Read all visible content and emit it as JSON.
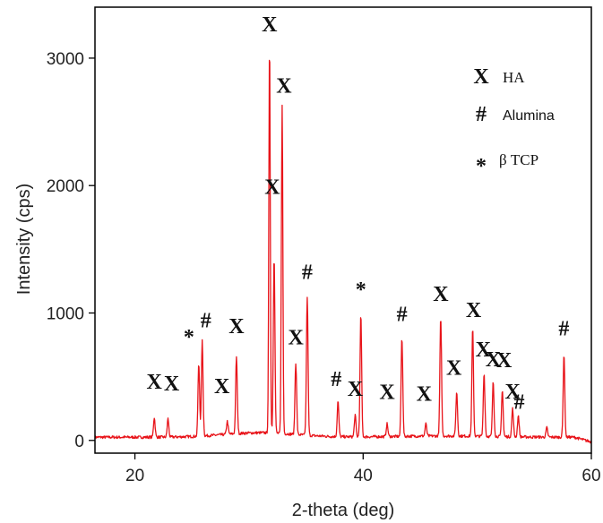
{
  "chart_data": {
    "type": "line",
    "title": "",
    "xlabel": "2-theta (deg)",
    "ylabel": "Intensity (cps)",
    "xlim": [
      16.5,
      60
    ],
    "ylim": [
      -100,
      3400
    ],
    "x_ticks": [
      20,
      40,
      60
    ],
    "x_tick_labels": [
      "20",
      "40",
      "60"
    ],
    "y_ticks": [
      0,
      1000,
      2000,
      3000
    ],
    "y_tick_labels": [
      "0",
      "1000",
      "2000",
      "3000"
    ],
    "grid": false,
    "line_color": "#e8141a",
    "legend": {
      "placement": "top-right",
      "entries": [
        {
          "symbol": "X",
          "label": "HA"
        },
        {
          "symbol": "#",
          "label": "Alumina"
        },
        {
          "symbol": "*",
          "label": "β TCP"
        }
      ]
    },
    "peaks": [
      {
        "x": 21.7,
        "y": 180,
        "marker": "X"
      },
      {
        "x": 22.9,
        "y": 170,
        "marker": "X"
      },
      {
        "x": 25.6,
        "y": 600,
        "marker": "*"
      },
      {
        "x": 25.9,
        "y": 780,
        "marker": "#"
      },
      {
        "x": 28.1,
        "y": 150,
        "marker": "X"
      },
      {
        "x": 28.9,
        "y": 660,
        "marker": "X"
      },
      {
        "x": 31.8,
        "y": 3120,
        "marker": "X"
      },
      {
        "x": 32.2,
        "y": 1450,
        "marker": "X"
      },
      {
        "x": 32.9,
        "y": 2640,
        "marker": "X"
      },
      {
        "x": 34.1,
        "y": 610,
        "marker": "X"
      },
      {
        "x": 35.1,
        "y": 1130,
        "marker": "#"
      },
      {
        "x": 37.8,
        "y": 310,
        "marker": "#"
      },
      {
        "x": 39.3,
        "y": 200,
        "marker": "X"
      },
      {
        "x": 39.8,
        "y": 990,
        "marker": "*"
      },
      {
        "x": 42.1,
        "y": 130,
        "marker": "X"
      },
      {
        "x": 43.4,
        "y": 810,
        "marker": "#"
      },
      {
        "x": 45.5,
        "y": 130,
        "marker": "X"
      },
      {
        "x": 46.8,
        "y": 960,
        "marker": "X"
      },
      {
        "x": 48.2,
        "y": 380,
        "marker": "X"
      },
      {
        "x": 49.6,
        "y": 880,
        "marker": "X"
      },
      {
        "x": 50.6,
        "y": 530,
        "marker": "X"
      },
      {
        "x": 51.4,
        "y": 460,
        "marker": "X"
      },
      {
        "x": 52.2,
        "y": 400,
        "marker": "X"
      },
      {
        "x": 53.1,
        "y": 250,
        "marker": "X"
      },
      {
        "x": 53.6,
        "y": 190,
        "marker": "#"
      },
      {
        "x": 56.1,
        "y": 100,
        "marker": ""
      },
      {
        "x": 57.6,
        "y": 680,
        "marker": "#"
      }
    ]
  }
}
